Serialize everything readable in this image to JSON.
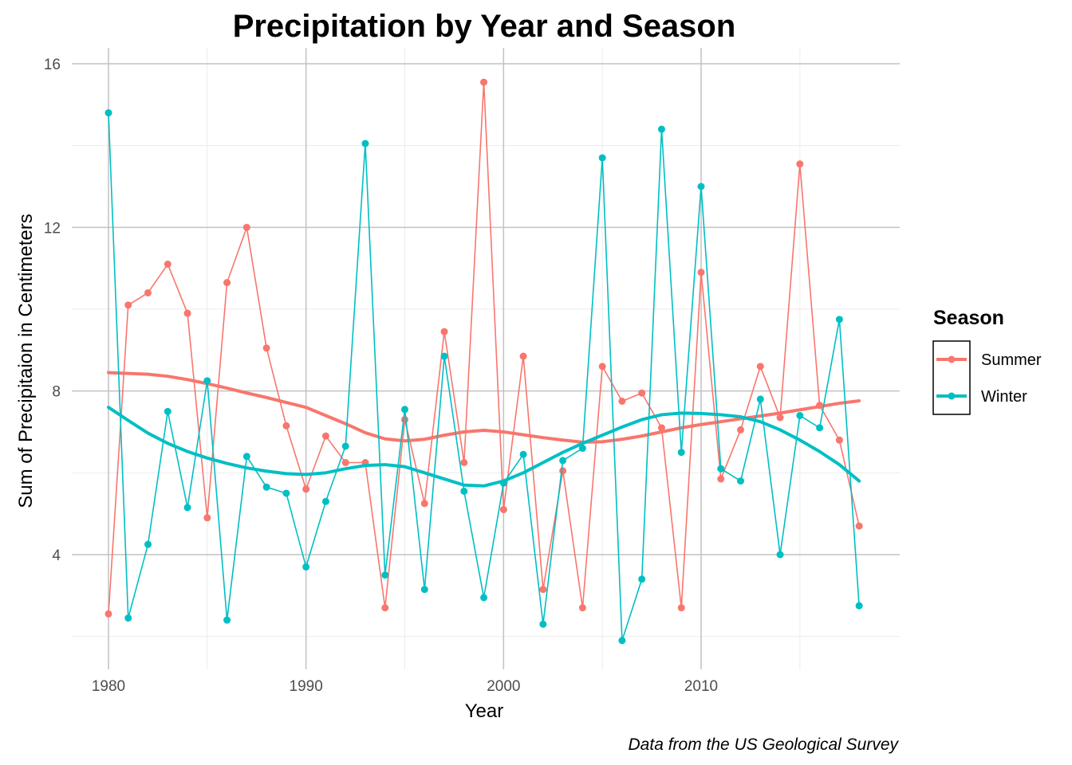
{
  "chart_data": {
    "type": "line",
    "title": "Precipitation by Year and Season",
    "xlabel": "Year",
    "ylabel": "Sum of Precipitaion in Centimeters",
    "caption": "Data from the US Geological Survey",
    "xlim": [
      1980,
      2018
    ],
    "ylim": [
      1.5,
      16.5
    ],
    "x_ticks": [
      1980,
      1990,
      2000,
      2010
    ],
    "y_ticks": [
      4,
      8,
      12,
      16
    ],
    "grid": true,
    "legend": {
      "title": "Season",
      "position": "right"
    },
    "x": [
      1980,
      1981,
      1982,
      1983,
      1984,
      1985,
      1986,
      1987,
      1988,
      1989,
      1990,
      1991,
      1992,
      1993,
      1994,
      1995,
      1996,
      1997,
      1998,
      1999,
      2000,
      2001,
      2002,
      2003,
      2004,
      2005,
      2006,
      2007,
      2008,
      2009,
      2010,
      2011,
      2012,
      2013,
      2014,
      2015,
      2016,
      2017,
      2018
    ],
    "series": [
      {
        "name": "Summer",
        "color": "#F8766D",
        "values": [
          2.55,
          10.1,
          10.4,
          11.1,
          9.9,
          4.9,
          10.65,
          12.0,
          9.05,
          7.15,
          5.6,
          6.9,
          6.25,
          6.25,
          2.7,
          7.3,
          5.25,
          9.45,
          6.25,
          15.55,
          5.1,
          8.85,
          3.15,
          6.05,
          2.7,
          8.6,
          7.75,
          7.95,
          7.1,
          2.7,
          10.9,
          5.85,
          7.05,
          8.6,
          7.35,
          13.55,
          7.65,
          6.8,
          4.7
        ],
        "smooth": [
          8.45,
          8.43,
          8.41,
          8.36,
          8.28,
          8.18,
          8.07,
          7.95,
          7.84,
          7.72,
          7.6,
          7.4,
          7.2,
          6.98,
          6.83,
          6.78,
          6.82,
          6.92,
          7.0,
          7.04,
          7.0,
          6.93,
          6.86,
          6.8,
          6.75,
          6.76,
          6.82,
          6.9,
          7.0,
          7.1,
          7.18,
          7.25,
          7.32,
          7.39,
          7.46,
          7.54,
          7.62,
          7.7,
          7.76
        ]
      },
      {
        "name": "Winter",
        "color": "#00BFC4",
        "values": [
          14.8,
          2.45,
          4.25,
          7.5,
          5.15,
          8.25,
          2.4,
          6.4,
          5.65,
          5.5,
          3.7,
          5.3,
          6.65,
          14.05,
          3.5,
          7.55,
          3.15,
          8.85,
          5.55,
          2.95,
          5.75,
          6.45,
          2.3,
          6.3,
          6.6,
          13.7,
          1.9,
          3.4,
          14.4,
          6.5,
          13.0,
          6.1,
          5.8,
          7.8,
          4.0,
          7.4,
          7.1,
          9.75,
          2.75
        ],
        "smooth": [
          7.6,
          7.28,
          6.97,
          6.72,
          6.52,
          6.36,
          6.23,
          6.12,
          6.04,
          5.98,
          5.96,
          6.0,
          6.1,
          6.18,
          6.2,
          6.15,
          6.0,
          5.85,
          5.7,
          5.68,
          5.8,
          6.0,
          6.25,
          6.5,
          6.72,
          6.92,
          7.12,
          7.3,
          7.42,
          7.46,
          7.45,
          7.42,
          7.37,
          7.25,
          7.05,
          6.8,
          6.52,
          6.2,
          5.8
        ]
      }
    ]
  }
}
